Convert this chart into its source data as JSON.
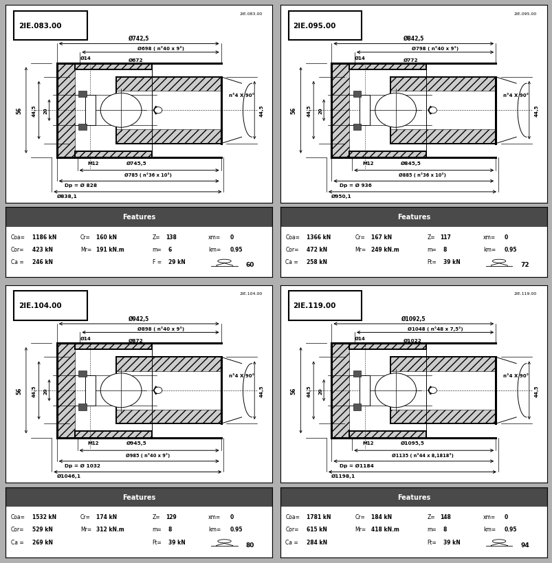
{
  "panels": [
    {
      "id": "2IE.083.00",
      "title": "2IE.083.00",
      "dim_outer1": "Ø742,5",
      "dim_outer2": "Ø698 ( n°40 x 9°)",
      "dim_d14": "Ø14",
      "dim_inner1": "Ø672",
      "dim_m12": "M12",
      "dim_mid1": "Ø745,5",
      "dim_mid2": "Ø785 ( n°36 x 10°)",
      "dim_dp": "Dp = Ø 828",
      "dim_outer_d": "Ø838,1",
      "dim_n4": "n°4 X 90°",
      "feat_coa": "Coa=",
      "feat_coa_v": "1186 kN",
      "feat_cr": "Cr=",
      "feat_cr_v": "160 kN",
      "feat_z": "Z=",
      "feat_z_v": "138",
      "feat_xm": "xm=",
      "feat_xm_v": "0",
      "feat_cor": "Cor=",
      "feat_cor_v": "423 kN",
      "feat_mr": "Mr=",
      "feat_mr_v": "191 kN.m",
      "feat_m": "m=",
      "feat_m_v": "6",
      "feat_km": "km=",
      "feat_km_v": "0.95",
      "feat_ca": "Ca =",
      "feat_ca_v": "246 kN",
      "feat_f": "F =",
      "feat_f_v": "29 kN",
      "weight": "60"
    },
    {
      "id": "2IE.095.00",
      "title": "2IE.095.00",
      "dim_outer1": "Ø842,5",
      "dim_outer2": "Ø798 ( n°40 x 9°)",
      "dim_d14": "Ø14",
      "dim_inner1": "Ø772",
      "dim_m12": "M12",
      "dim_mid1": "Ø845,5",
      "dim_mid2": "Ø885 ( n°36 x 10°)",
      "dim_dp": "Dp = Ø 936",
      "dim_outer_d": "Ø950,1",
      "dim_n4": "n°4 X 90°",
      "feat_coa": "Coa=",
      "feat_coa_v": "1366 kN",
      "feat_cr": "Cr=",
      "feat_cr_v": "167 kN",
      "feat_z": "Z=",
      "feat_z_v": "117",
      "feat_xm": "xm=",
      "feat_xm_v": "0",
      "feat_cor": "Cor=",
      "feat_cor_v": "472 kN",
      "feat_mr": "Mr=",
      "feat_mr_v": "249 kN.m",
      "feat_m": "m=",
      "feat_m_v": "8",
      "feat_km": "km=",
      "feat_km_v": "0.95",
      "feat_ca": "Ca =",
      "feat_ca_v": "258 kN",
      "feat_f": "Ft=",
      "feat_f_v": "39 kN",
      "weight": "72"
    },
    {
      "id": "2IE.104.00",
      "title": "2IE.104.00",
      "dim_outer1": "Ø942,5",
      "dim_outer2": "Ø898 ( n°40 x 9°)",
      "dim_d14": "Ø14",
      "dim_inner1": "Ø872",
      "dim_m12": "M12",
      "dim_mid1": "Ø945,5",
      "dim_mid2": "Ø985 ( n°40 x 9°)",
      "dim_dp": "Dp = Ø 1032",
      "dim_outer_d": "Ø1046,1",
      "dim_n4": "n°4 X 90°",
      "feat_coa": "Coa=",
      "feat_coa_v": "1532 kN",
      "feat_cr": "Cr=",
      "feat_cr_v": "174 kN",
      "feat_z": "Z=",
      "feat_z_v": "129",
      "feat_xm": "xm=",
      "feat_xm_v": "0",
      "feat_cor": "Cor=",
      "feat_cor_v": "529 kN",
      "feat_mr": "Mr=",
      "feat_mr_v": "312 kN.m",
      "feat_m": "m=",
      "feat_m_v": "8",
      "feat_km": "km=",
      "feat_km_v": "0.95",
      "feat_ca": "Ca =",
      "feat_ca_v": "269 kN",
      "feat_f": "Ft=",
      "feat_f_v": "39 kN",
      "weight": "80"
    },
    {
      "id": "2IE.119.00",
      "title": "2IE.119.00",
      "dim_outer1": "Ø1092,5",
      "dim_outer2": "Ø1048 ( n°48 x 7,5°)",
      "dim_d14": "Ø14",
      "dim_inner1": "Ø1022",
      "dim_m12": "M12",
      "dim_mid1": "Ø1095,5",
      "dim_mid2": "Ø1135 ( n°44 x 8,1818°)",
      "dim_dp": "Dp = Ø1184",
      "dim_outer_d": "Ø1198,1",
      "dim_n4": "n°4 X 90°",
      "feat_coa": "Coa=",
      "feat_coa_v": "1781 kN",
      "feat_cr": "Cr=",
      "feat_cr_v": "184 kN",
      "feat_z": "Z=",
      "feat_z_v": "148",
      "feat_xm": "xm=",
      "feat_xm_v": "0",
      "feat_cor": "Cor=",
      "feat_cor_v": "615 kN",
      "feat_mr": "Mr=",
      "feat_mr_v": "418 kN.m",
      "feat_m": "m=",
      "feat_m_v": "8",
      "feat_km": "km=",
      "feat_km_v": "0.95",
      "feat_ca": "Ca =",
      "feat_ca_v": "284 kN",
      "feat_f": "Ft=",
      "feat_f_v": "39 kN",
      "weight": "94"
    }
  ]
}
